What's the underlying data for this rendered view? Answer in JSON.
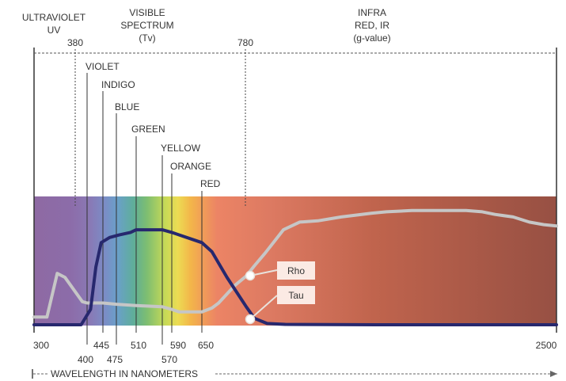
{
  "chart_data": {
    "type": "line",
    "xlabel": "WAVELENGTH IN NANOMETERS",
    "region_labels": {
      "uv": [
        "ULTRAVIOLET",
        "UV"
      ],
      "visible": [
        "VISIBLE",
        "SPECTRUM",
        "(Tv)"
      ],
      "ir": [
        "INFRA",
        "RED, IR",
        "(g-value)"
      ],
      "uv_boundary": "380",
      "ir_boundary": "780"
    },
    "color_bands": [
      {
        "name": "VIOLET",
        "x_label": "400"
      },
      {
        "name": "INDIGO",
        "x_label": "445"
      },
      {
        "name": "BLUE",
        "x_label": "475"
      },
      {
        "name": "GREEN",
        "x_label": "510"
      },
      {
        "name": "YELLOW",
        "x_label": "570"
      },
      {
        "name": "ORANGE",
        "x_label": "590"
      },
      {
        "name": "RED",
        "x_label": "650"
      }
    ],
    "x_ticks": [
      "300",
      "400",
      "445",
      "475",
      "510",
      "570",
      "590",
      "650",
      "2500"
    ],
    "series": [
      {
        "name": "Rho",
        "color": "#c6c6c6",
        "points": [
          [
            300,
            0.06
          ],
          [
            325,
            0.06
          ],
          [
            345,
            0.4
          ],
          [
            360,
            0.37
          ],
          [
            392,
            0.18
          ],
          [
            400,
            0.17
          ],
          [
            445,
            0.17
          ],
          [
            475,
            0.16
          ],
          [
            510,
            0.15
          ],
          [
            570,
            0.14
          ],
          [
            590,
            0.12
          ],
          [
            605,
            0.1
          ],
          [
            650,
            0.1
          ],
          [
            680,
            0.13
          ],
          [
            700,
            0.17
          ],
          [
            725,
            0.24
          ],
          [
            750,
            0.31
          ],
          [
            785,
            0.38
          ],
          [
            830,
            0.46
          ],
          [
            890,
            0.56
          ],
          [
            990,
            0.74
          ],
          [
            1080,
            0.8
          ],
          [
            1180,
            0.81
          ],
          [
            1310,
            0.84
          ],
          [
            1480,
            0.87
          ],
          [
            1560,
            0.88
          ],
          [
            1700,
            0.89
          ],
          [
            2000,
            0.89
          ],
          [
            2090,
            0.88
          ],
          [
            2160,
            0.86
          ],
          [
            2260,
            0.84
          ],
          [
            2350,
            0.8
          ],
          [
            2430,
            0.78
          ],
          [
            2500,
            0.77
          ]
        ]
      },
      {
        "name": "Tau",
        "color": "#27286e",
        "points": [
          [
            300,
            0.0
          ],
          [
            390,
            0.0
          ],
          [
            410,
            0.12
          ],
          [
            425,
            0.45
          ],
          [
            440,
            0.64
          ],
          [
            460,
            0.68
          ],
          [
            480,
            0.7
          ],
          [
            500,
            0.72
          ],
          [
            510,
            0.74
          ],
          [
            570,
            0.74
          ],
          [
            590,
            0.72
          ],
          [
            605,
            0.7
          ],
          [
            650,
            0.64
          ],
          [
            680,
            0.57
          ],
          [
            700,
            0.48
          ],
          [
            725,
            0.37
          ],
          [
            755,
            0.25
          ],
          [
            785,
            0.14
          ],
          [
            830,
            0.05
          ],
          [
            900,
            0.01
          ],
          [
            1000,
            0.003
          ],
          [
            1500,
            0.0
          ],
          [
            2500,
            0.0
          ]
        ]
      }
    ],
    "legend_labels": [
      "Rho",
      "Tau"
    ],
    "ylim": [
      0,
      1
    ]
  }
}
